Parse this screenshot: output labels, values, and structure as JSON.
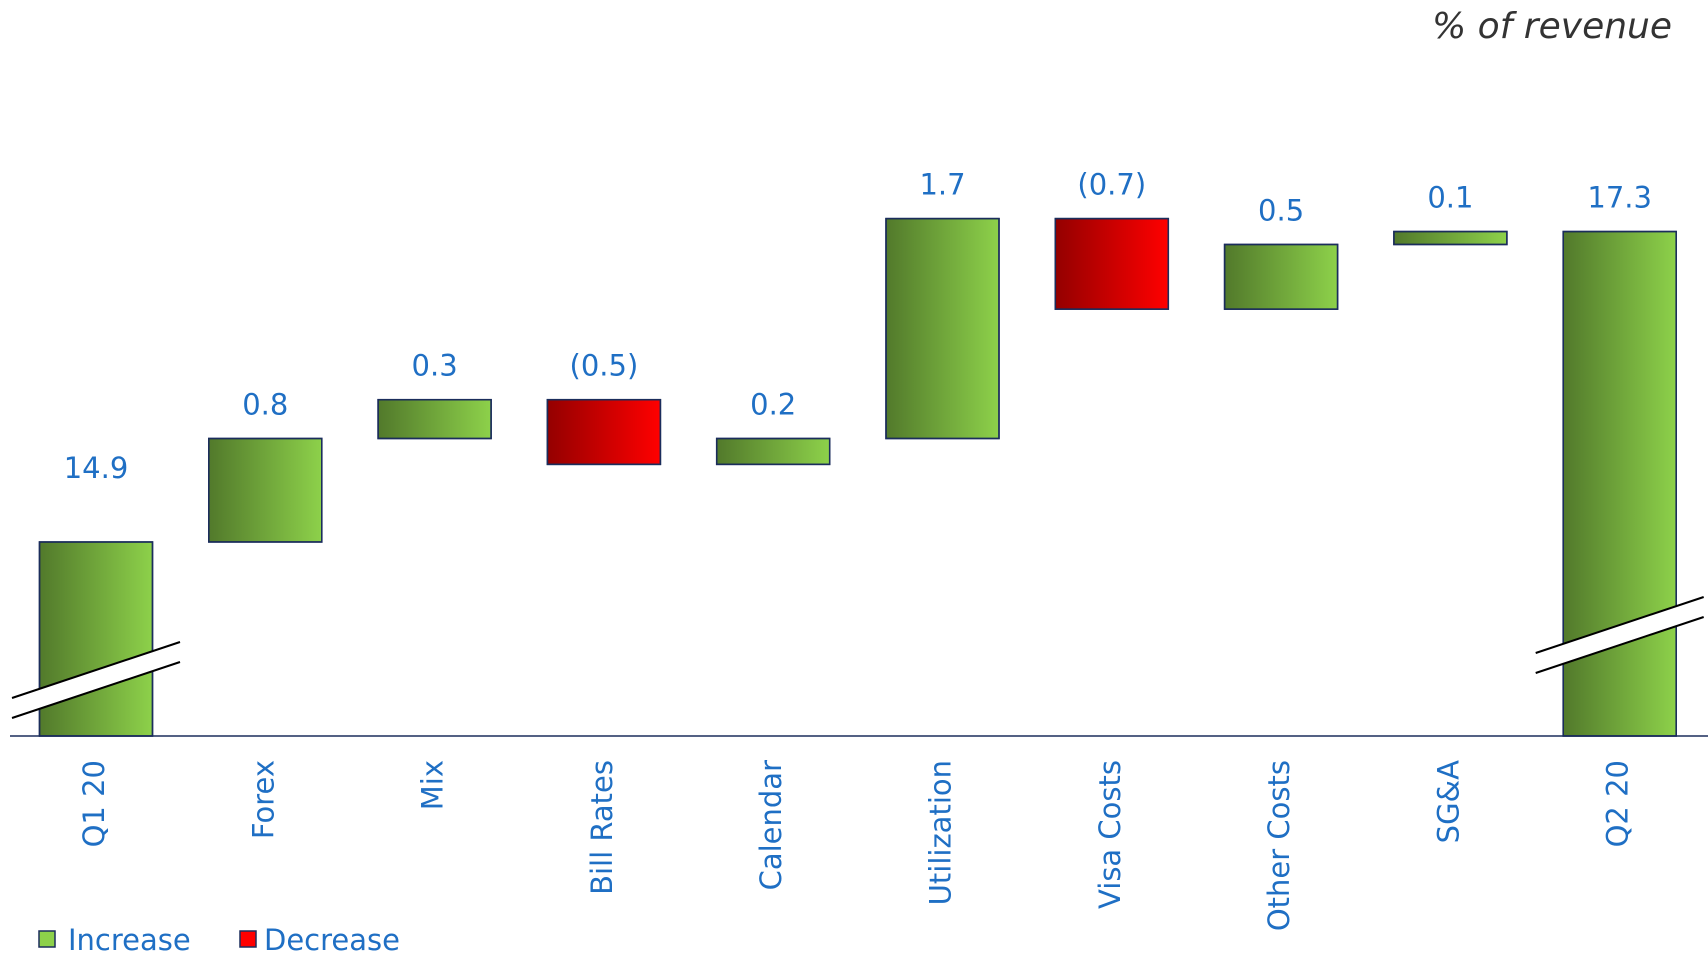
{
  "chart_data": {
    "type": "waterfall",
    "subtitle": "% of revenue",
    "categories": [
      "Q1 20",
      "Forex",
      "Mix",
      "Bill Rates",
      "Calendar",
      "Utilization",
      "Visa Costs",
      "Other Costs",
      "SG&A",
      "Q2 20"
    ],
    "values": [
      14.9,
      0.8,
      0.3,
      -0.5,
      0.2,
      1.7,
      -0.7,
      0.5,
      0.1,
      17.3
    ],
    "value_labels": [
      "14.9",
      "0.8",
      "0.3",
      "(0.5)",
      "0.2",
      "1.7",
      "(0.7)",
      "0.5",
      "0.1",
      "17.3"
    ],
    "legend": [
      {
        "name": "Increase",
        "color": "#8dd14a"
      },
      {
        "name": "Decrease",
        "color": "#ff0000"
      }
    ],
    "ylim": [
      13.4,
      18
    ]
  }
}
